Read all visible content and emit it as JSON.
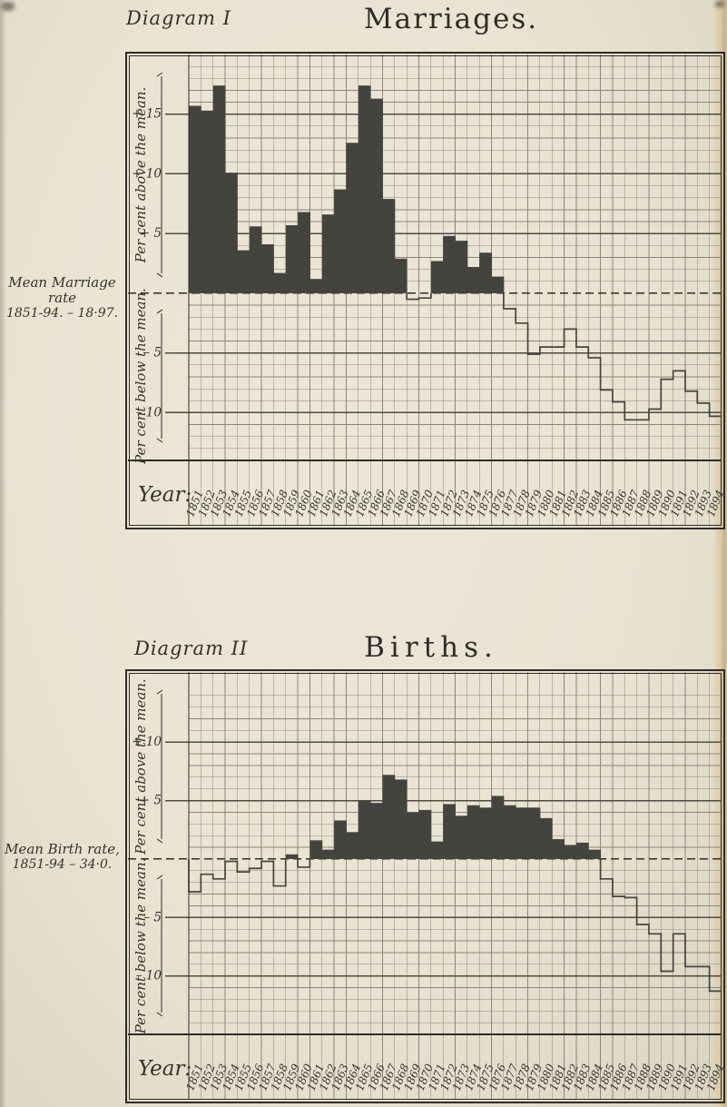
{
  "page": {
    "paper_color": "#e9e3d2",
    "ink_color": "#2e2c26",
    "bar_color": "#45433e",
    "grid_minor_color": "#8b8679",
    "grid_major_color": "#4e4b42"
  },
  "chart_data": [
    {
      "type": "bar",
      "diagram_label": "Diagram I",
      "title": "Marriages.",
      "mean_label_1": "Mean Marriage rate",
      "mean_label_2": "1851-94. – 18·97.",
      "ylabel_above": "Per cent above the mean.",
      "ylabel_below": "Per cent below the mean.",
      "xlabel": "Year:",
      "ylim": [
        20,
        -14
      ],
      "grid": true,
      "legend_position": "none",
      "ticks": [
        {
          "label": "+ 15",
          "v": 15
        },
        {
          "label": "+ 10",
          "v": 10
        },
        {
          "label": "+ 5",
          "v": 5
        },
        {
          "label": "– 5",
          "v": -5
        },
        {
          "label": "– 10",
          "v": -10
        }
      ],
      "x": [
        "1851",
        "1852",
        "1853",
        "1854",
        "1855",
        "1856",
        "1857",
        "1858",
        "1859",
        "1860",
        "1861",
        "1862",
        "1863",
        "1864",
        "1865",
        "1866",
        "1867",
        "1868",
        "1869",
        "1870",
        "1871",
        "1872",
        "1873",
        "1874",
        "1875",
        "1876",
        "1877",
        "1878",
        "1879",
        "1880",
        "1881",
        "1882",
        "1883",
        "1884",
        "1885",
        "1886",
        "1887",
        "1888",
        "1889",
        "1890",
        "1891",
        "1892",
        "1893",
        "1894"
      ],
      "values": [
        15.7,
        15.3,
        17.4,
        10.1,
        3.6,
        5.6,
        4.1,
        1.7,
        5.7,
        6.8,
        1.2,
        6.6,
        8.7,
        12.6,
        17.4,
        16.3,
        7.9,
        2.9,
        -0.5,
        -0.4,
        2.7,
        4.8,
        4.4,
        2.2,
        3.4,
        1.4,
        -1.3,
        -2.5,
        -5.1,
        -4.5,
        -4.5,
        -3.0,
        -4.5,
        -5.4,
        -8.1,
        -9.1,
        -10.6,
        -10.6,
        -9.7,
        -7.2,
        -6.5,
        -8.2,
        -9.2,
        -10.3
      ]
    },
    {
      "type": "bar",
      "diagram_label": "Diagram II",
      "title": "Births.",
      "mean_label_1": "Mean Birth rate,",
      "mean_label_2": "1851-94 – 34·0.",
      "ylabel_above": "Per cent above the mean.",
      "ylabel_below": "Per cent below the mean.",
      "xlabel": "Year:",
      "ylim": [
        16,
        -15
      ],
      "grid": true,
      "legend_position": "none",
      "ticks": [
        {
          "label": "+ 10",
          "v": 10
        },
        {
          "label": "+ 5",
          "v": 5
        },
        {
          "label": "– 5",
          "v": -5
        },
        {
          "label": "– 10",
          "v": -10
        }
      ],
      "x": [
        "1851",
        "1852",
        "1853",
        "1854",
        "1855",
        "1856",
        "1857",
        "1858",
        "1859",
        "1860",
        "1861",
        "1862",
        "1863",
        "1864",
        "1865",
        "1866",
        "1867",
        "1868",
        "1869",
        "1870",
        "1871",
        "1872",
        "1873",
        "1874",
        "1875",
        "1876",
        "1877",
        "1878",
        "1879",
        "1880",
        "1881",
        "1882",
        "1883",
        "1884",
        "1885",
        "1886",
        "1887",
        "1888",
        "1889",
        "1890",
        "1891",
        "1892",
        "1893",
        "1894"
      ],
      "values": [
        -2.8,
        -1.3,
        -1.7,
        -0.2,
        -1.1,
        -0.8,
        -0.2,
        -2.3,
        0.4,
        -0.7,
        1.6,
        0.8,
        3.3,
        2.3,
        5.0,
        4.8,
        7.2,
        6.8,
        4.0,
        4.2,
        1.5,
        4.7,
        3.7,
        4.6,
        4.4,
        5.4,
        4.6,
        4.4,
        4.4,
        3.5,
        1.7,
        1.2,
        1.4,
        0.8,
        -1.7,
        -3.2,
        -3.3,
        -5.6,
        -6.4,
        -9.6,
        -6.4,
        -9.2,
        -9.2,
        -11.3
      ]
    }
  ]
}
